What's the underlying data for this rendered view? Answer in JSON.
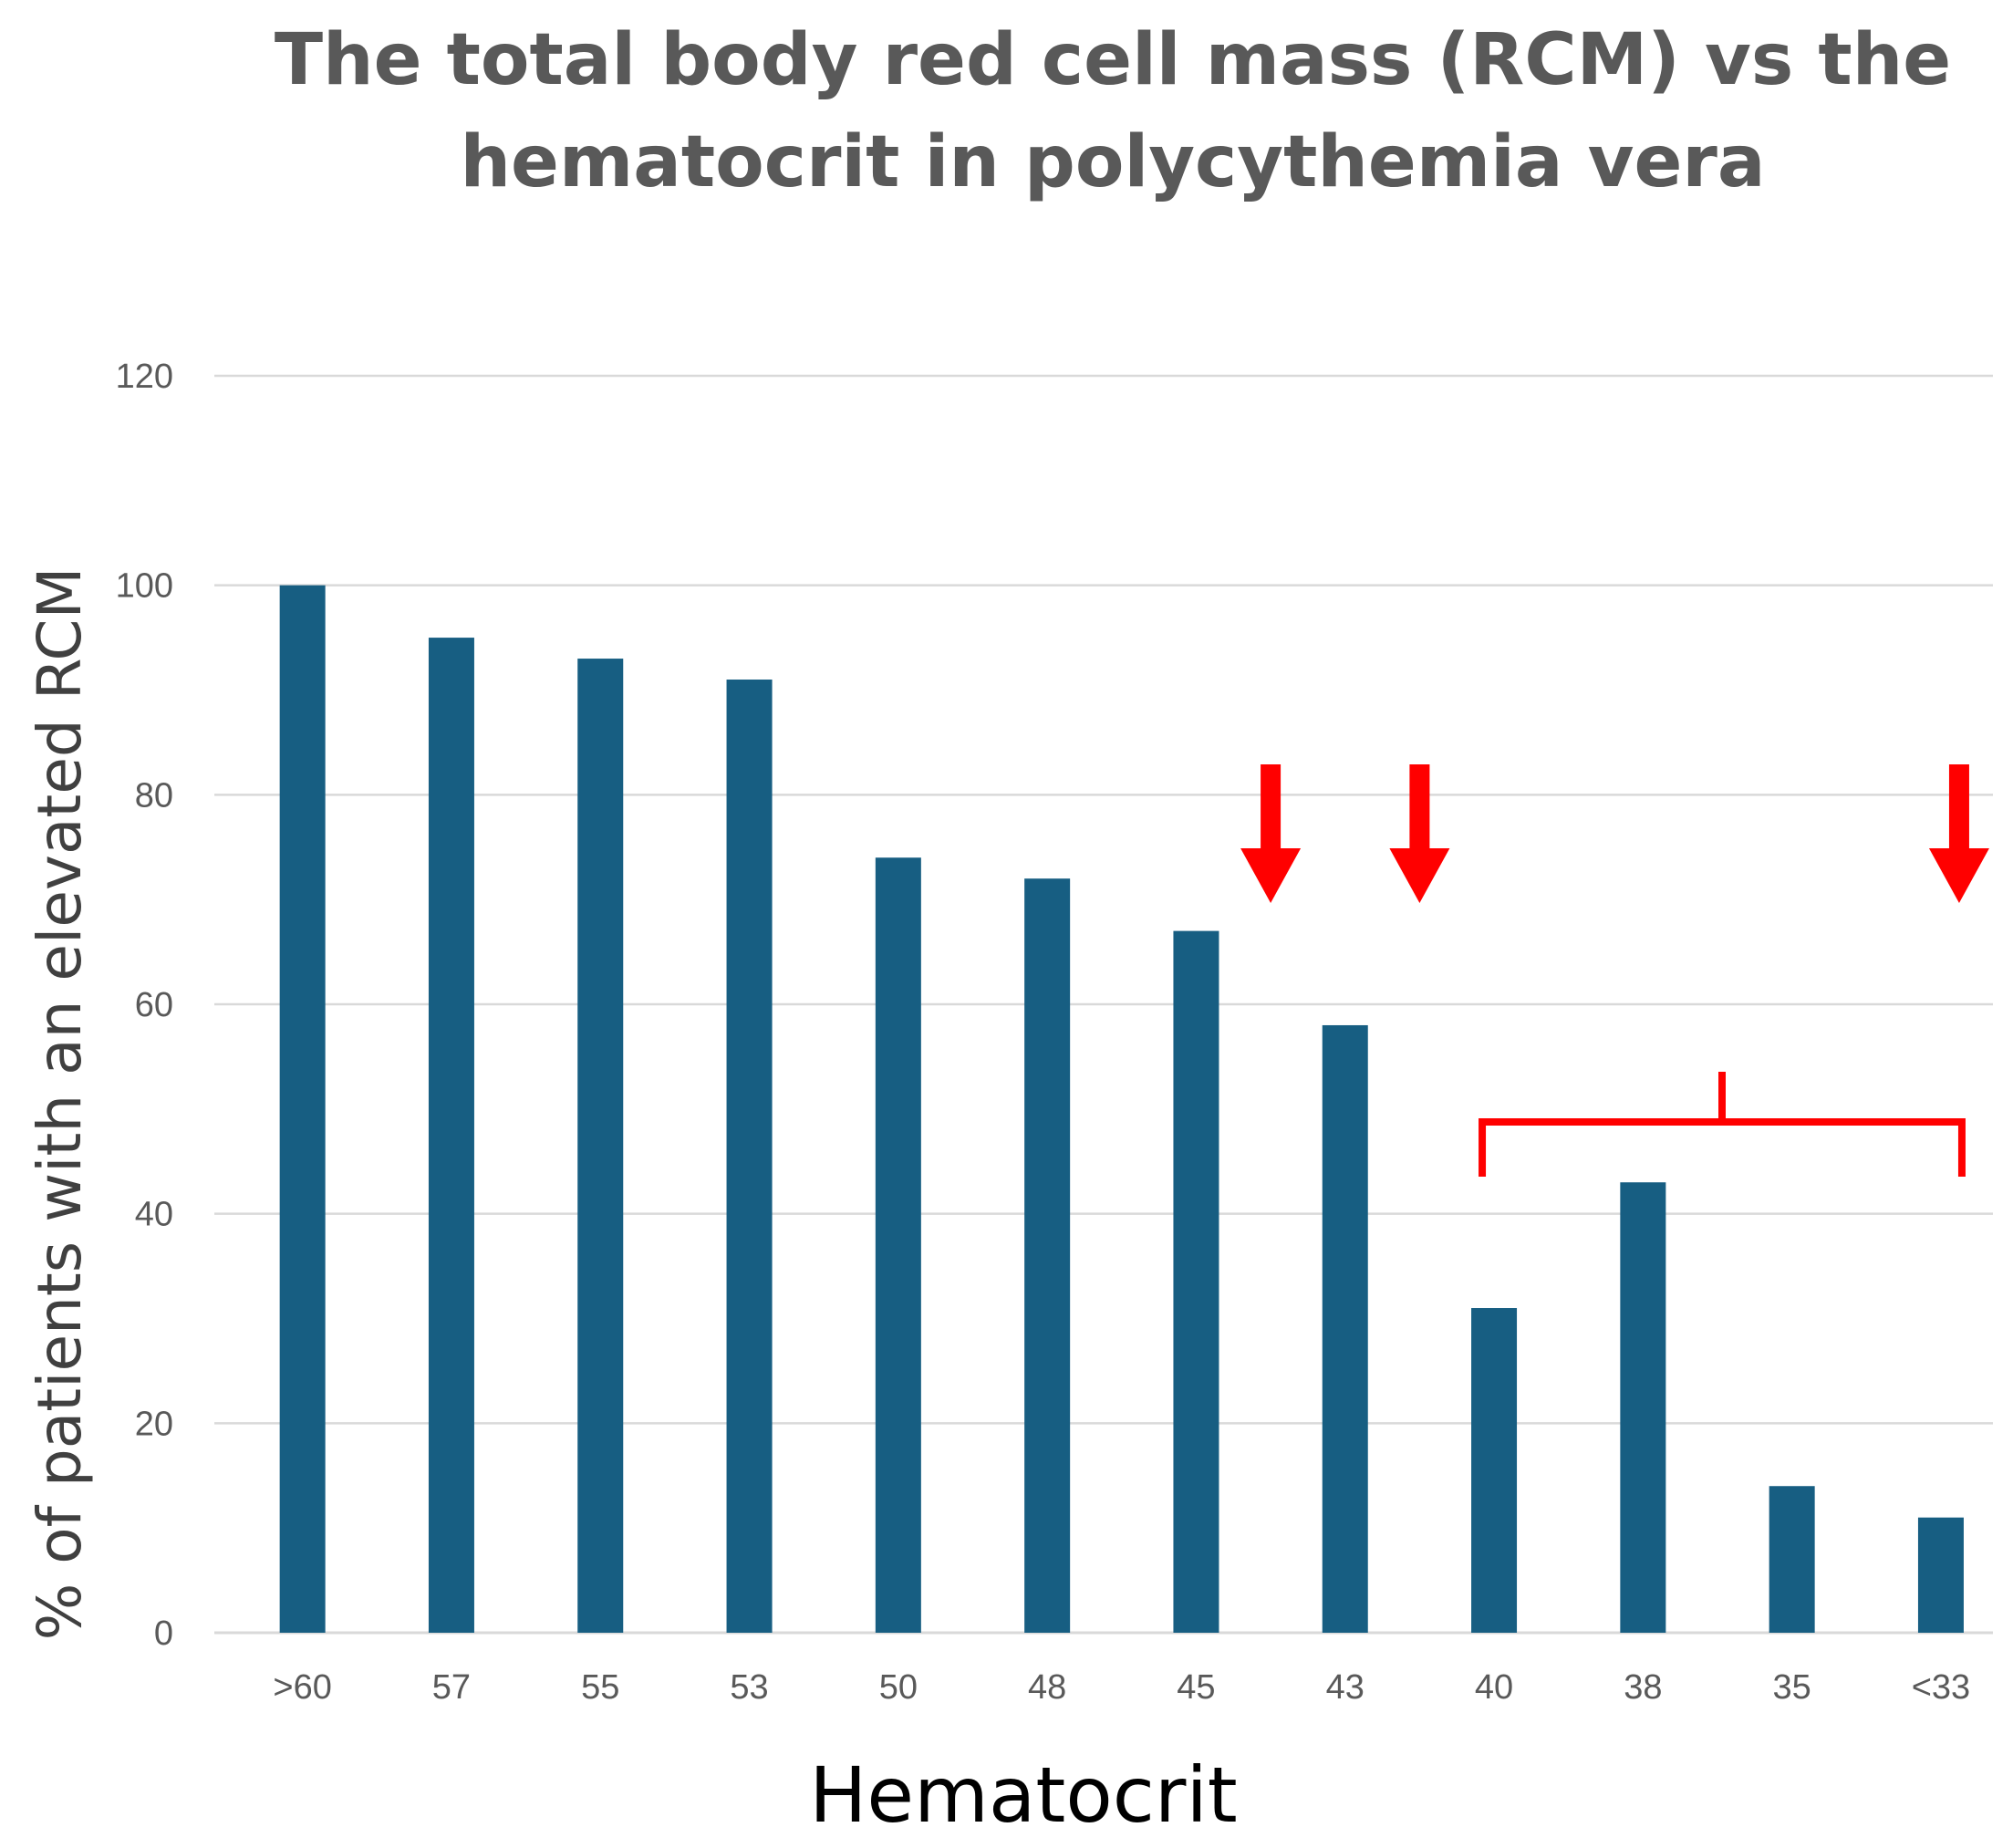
{
  "chart_data": {
    "type": "bar",
    "title_lines": [
      "The total body red cell mass (RCM) vs the",
      "hematocrit in polycythemia vera"
    ],
    "xlabel": "Hematocrit",
    "ylabel": "% of patients with an elevated RCM",
    "categories": [
      ">60",
      "57",
      "55",
      "53",
      "50",
      "48",
      "45",
      "43",
      "40",
      "38",
      "35",
      "<33"
    ],
    "values": [
      100,
      95,
      93,
      91,
      74,
      72,
      67,
      58,
      31,
      43,
      14,
      11
    ],
    "ylim": [
      0,
      120
    ],
    "yticks": [
      0,
      20,
      40,
      60,
      80,
      100,
      120
    ],
    "grid": true,
    "legend": "none",
    "bar_color": "#175E82",
    "gridline_color": "#D9D9D9",
    "annotation_color": "#FF0000",
    "annotations": {
      "arrows_between_categories": [
        {
          "after": "45",
          "before": "43"
        },
        {
          "after": "43",
          "before": "40"
        },
        {
          "above": "<33"
        }
      ],
      "bracket_over_categories": [
        "40",
        "38",
        "35",
        "<33"
      ]
    }
  }
}
